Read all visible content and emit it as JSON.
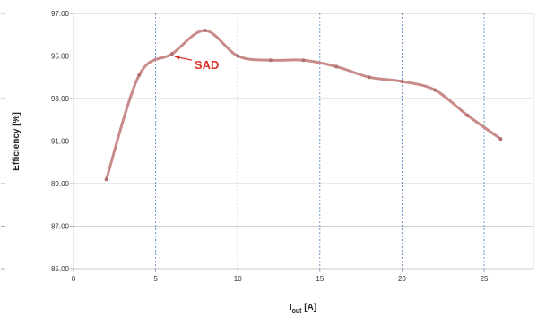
{
  "chart_data": {
    "type": "line",
    "xlabel": "I",
    "xlabel_sub": "out",
    "xlabel_unit": " [A]",
    "ylabel": "Efficiency [%]",
    "xlim": [
      0,
      28
    ],
    "ylim": [
      85,
      97
    ],
    "x_ticks": [
      0,
      5,
      10,
      15,
      20,
      25
    ],
    "y_ticks": [
      85,
      87,
      89,
      91,
      93,
      95,
      97
    ],
    "y_tick_labels": [
      "85.00",
      "87.00",
      "89.00",
      "91.00",
      "93.00",
      "95.00",
      "97.00"
    ],
    "grid": true,
    "series": [
      {
        "color": "#c98a8a",
        "x": [
          2,
          4,
          6,
          8,
          10,
          12,
          14,
          16,
          18,
          20,
          22,
          24,
          26
        ],
        "y": [
          89.2,
          94.1,
          95.1,
          96.2,
          95.0,
          94.8,
          94.8,
          94.5,
          94.0,
          93.8,
          93.4,
          92.2,
          91.1
        ]
      }
    ],
    "annotations": [
      {
        "text": "SAD",
        "x": 6,
        "y": 95.1,
        "color": "#d9322c"
      }
    ]
  }
}
